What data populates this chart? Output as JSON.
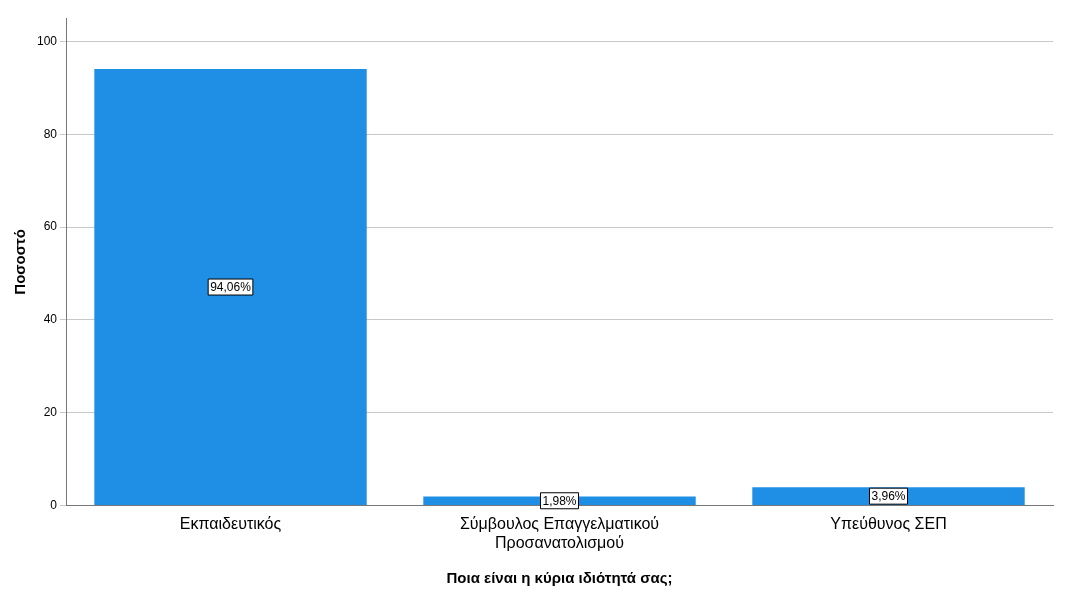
{
  "chart_data": {
    "type": "bar",
    "xlabel": "Ποια είναι η κύρια ιδιότητά σας;",
    "ylabel": "Ποσοστό",
    "categories": [
      "Εκπαιδευτικός",
      "Σύμβουλος Επαγγελματικού Προσανατολισμού",
      "Υπεύθυνος ΣΕΠ"
    ],
    "values": [
      94.06,
      1.98,
      3.96
    ],
    "value_labels": [
      "94,06%",
      "1,98%",
      "3,96%"
    ],
    "color": "#1f8fe6",
    "ylim": [
      0,
      105
    ],
    "yticks": [
      0,
      20,
      40,
      60,
      80,
      100
    ],
    "grid": "y",
    "legend": false
  }
}
